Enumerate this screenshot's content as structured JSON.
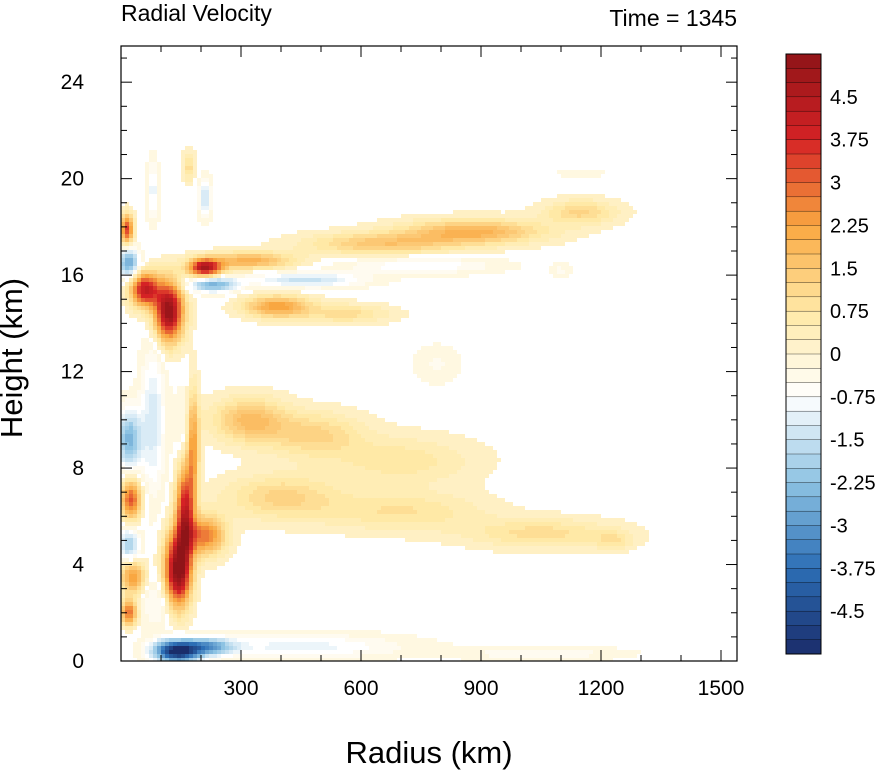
{
  "chart_data": {
    "type": "heatmap",
    "title_left": "Radial Velocity",
    "title_right": "Time = 1345",
    "xlabel": "Radius (km)",
    "ylabel": "Height (km)",
    "xlim": [
      0,
      1540
    ],
    "ylim": [
      0,
      25.5
    ],
    "xticks": [
      300,
      600,
      900,
      1200,
      1500
    ],
    "xtick_labels": [
      "300",
      "600",
      "900",
      "1200",
      "1500"
    ],
    "yticks": [
      0,
      4,
      8,
      12,
      16,
      20,
      24
    ],
    "ytick_labels": [
      "0",
      "4",
      "8",
      "12",
      "16",
      "20",
      "24"
    ],
    "colorbar": {
      "min": -5.25,
      "max": 5.25,
      "step": 0.25,
      "labels": [
        4.5,
        3.75,
        3,
        2.25,
        1.5,
        0.75,
        0,
        -0.75,
        -1.5,
        -2.25,
        -3,
        -3.75,
        -4.5
      ],
      "label_text": [
        "4.5",
        "3.75",
        "3",
        "2.25",
        "1.5",
        "0.75",
        "0",
        "-0.75",
        "-1.5",
        "-2.25",
        "-3",
        "-3.75",
        "-4.5"
      ],
      "colors": [
        "#1a2d6b",
        "#2c6eb5",
        "#8dc3e3",
        "#ffffff",
        "#ffe9a6",
        "#f9a741",
        "#d52225",
        "#8f1418"
      ]
    },
    "features": [
      {
        "r": 120,
        "z": 14.5,
        "dr": 35,
        "dz": 1.2,
        "v": 5.2
      },
      {
        "r": 60,
        "z": 15.4,
        "dr": 35,
        "dz": 0.7,
        "v": 4.2
      },
      {
        "r": 210,
        "z": 16.3,
        "dr": 40,
        "dz": 0.35,
        "v": 4.5
      },
      {
        "r": 320,
        "z": 16.6,
        "dr": 110,
        "dz": 0.35,
        "v": 2.0
      },
      {
        "r": 650,
        "z": 17.3,
        "dr": 180,
        "dz": 0.45,
        "v": 1.5
      },
      {
        "r": 880,
        "z": 17.8,
        "dr": 170,
        "dz": 0.5,
        "v": 2.0
      },
      {
        "r": 1150,
        "z": 18.6,
        "dr": 90,
        "dz": 0.5,
        "v": 1.2
      },
      {
        "r": 390,
        "z": 14.7,
        "dr": 80,
        "dz": 0.45,
        "v": 2.3
      },
      {
        "r": 560,
        "z": 14.4,
        "dr": 110,
        "dz": 0.4,
        "v": 1.0
      },
      {
        "r": 230,
        "z": 15.6,
        "dr": 60,
        "dz": 0.3,
        "v": -2.5
      },
      {
        "r": 460,
        "z": 15.8,
        "dr": 140,
        "dz": 0.3,
        "v": -1.5
      },
      {
        "r": 750,
        "z": 16.4,
        "dr": 180,
        "dz": 0.35,
        "v": -0.9
      },
      {
        "r": 20,
        "z": 16.5,
        "dr": 25,
        "dz": 0.6,
        "v": -2.8
      },
      {
        "r": 15,
        "z": 17.9,
        "dr": 15,
        "dz": 0.6,
        "v": 3.5
      },
      {
        "r": 20,
        "z": 9.2,
        "dr": 30,
        "dz": 1.2,
        "v": -2.5
      },
      {
        "r": 25,
        "z": 6.7,
        "dr": 25,
        "dz": 0.8,
        "v": 3.2
      },
      {
        "r": 20,
        "z": 4.8,
        "dr": 25,
        "dz": 0.7,
        "v": -2.0
      },
      {
        "r": 30,
        "z": 3.5,
        "dr": 30,
        "dz": 0.7,
        "v": 2.5
      },
      {
        "r": 20,
        "z": 2.0,
        "dr": 20,
        "dz": 0.5,
        "v": 3.0
      },
      {
        "r": 80,
        "z": 10.0,
        "dr": 30,
        "dz": 3.0,
        "v": -1.3
      },
      {
        "r": 160,
        "z": 9.0,
        "dr": 25,
        "dz": 2.0,
        "v": -0.8
      },
      {
        "r": 140,
        "z": 3.7,
        "dr": 32,
        "dz": 1.5,
        "v": 5.2
      },
      {
        "r": 160,
        "z": 6.2,
        "dr": 22,
        "dz": 2.2,
        "v": 4.0
      },
      {
        "r": 180,
        "z": 9.0,
        "dr": 15,
        "dz": 2.2,
        "v": 2.5
      },
      {
        "r": 210,
        "z": 5.2,
        "dr": 50,
        "dz": 0.8,
        "v": 2.8
      },
      {
        "r": 320,
        "z": 10.0,
        "dr": 90,
        "dz": 0.9,
        "v": 1.7
      },
      {
        "r": 480,
        "z": 9.4,
        "dr": 120,
        "dz": 0.9,
        "v": 1.2
      },
      {
        "r": 700,
        "z": 8.3,
        "dr": 180,
        "dz": 1.0,
        "v": 0.8
      },
      {
        "r": 400,
        "z": 6.8,
        "dr": 140,
        "dz": 0.9,
        "v": 1.2
      },
      {
        "r": 700,
        "z": 6.2,
        "dr": 200,
        "dz": 0.8,
        "v": 0.9
      },
      {
        "r": 1050,
        "z": 5.3,
        "dr": 180,
        "dz": 0.6,
        "v": 1.0
      },
      {
        "r": 1230,
        "z": 5.0,
        "dr": 50,
        "dz": 0.4,
        "v": 0.7
      },
      {
        "r": 140,
        "z": 0.4,
        "dr": 55,
        "dz": 0.45,
        "v": -5.3
      },
      {
        "r": 220,
        "z": 0.6,
        "dr": 60,
        "dz": 0.35,
        "v": -2.5
      },
      {
        "r": 450,
        "z": 0.6,
        "dr": 250,
        "dz": 0.5,
        "v": -1.0
      },
      {
        "r": 100,
        "z": 2.5,
        "dr": 50,
        "dz": 1.2,
        "v": -0.8
      },
      {
        "r": 1050,
        "z": 0.3,
        "dr": 200,
        "dz": 0.3,
        "v": -0.6
      },
      {
        "r": 170,
        "z": 20.5,
        "dr": 15,
        "dz": 0.6,
        "v": 1.0
      },
      {
        "r": 210,
        "z": 19.2,
        "dr": 15,
        "dz": 0.8,
        "v": -1.4
      },
      {
        "r": 80,
        "z": 19.5,
        "dr": 15,
        "dz": 1.2,
        "v": -1.0
      },
      {
        "r": 1150,
        "z": 20.2,
        "dr": 60,
        "dz": 0.15,
        "v": -0.4
      },
      {
        "r": 1100,
        "z": 16.2,
        "dr": 25,
        "dz": 0.35,
        "v": -0.4
      },
      {
        "r": 790,
        "z": 12.3,
        "dr": 60,
        "dz": 0.8,
        "v": -0.4
      }
    ]
  }
}
